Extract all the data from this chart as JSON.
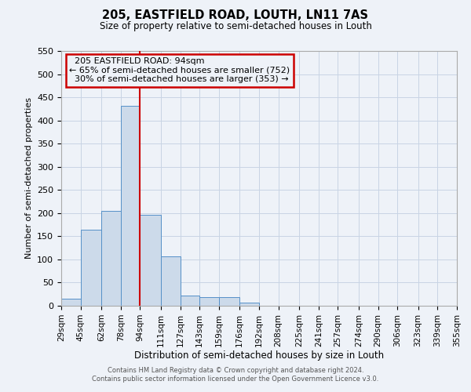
{
  "title": "205, EASTFIELD ROAD, LOUTH, LN11 7AS",
  "subtitle": "Size of property relative to semi-detached houses in Louth",
  "xlabel": "Distribution of semi-detached houses by size in Louth",
  "ylabel": "Number of semi-detached properties",
  "bin_labels": [
    "29sqm",
    "45sqm",
    "62sqm",
    "78sqm",
    "94sqm",
    "111sqm",
    "127sqm",
    "143sqm",
    "159sqm",
    "176sqm",
    "192sqm",
    "208sqm",
    "225sqm",
    "241sqm",
    "257sqm",
    "274sqm",
    "290sqm",
    "306sqm",
    "323sqm",
    "339sqm",
    "355sqm"
  ],
  "bin_edges": [
    29,
    45,
    62,
    78,
    94,
    111,
    127,
    143,
    159,
    176,
    192,
    208,
    225,
    241,
    257,
    274,
    290,
    306,
    323,
    339,
    355
  ],
  "bar_heights": [
    15,
    165,
    205,
    432,
    197,
    107,
    22,
    18,
    18,
    6,
    0,
    0,
    0,
    0,
    0,
    0,
    0,
    0,
    0,
    0
  ],
  "bar_color": "#ccdaea",
  "bar_edge_color": "#5590c8",
  "property_value": 94,
  "property_label": "205 EASTFIELD ROAD: 94sqm",
  "pct_smaller": 65,
  "pct_smaller_count": 752,
  "pct_larger": 30,
  "pct_larger_count": 353,
  "vline_color": "#cc0000",
  "annotation_box_edge_color": "#cc0000",
  "ylim": [
    0,
    550
  ],
  "yticks": [
    0,
    50,
    100,
    150,
    200,
    250,
    300,
    350,
    400,
    450,
    500,
    550
  ],
  "grid_color": "#c8d4e4",
  "background_color": "#eef2f8",
  "footer_line1": "Contains HM Land Registry data © Crown copyright and database right 2024.",
  "footer_line2": "Contains public sector information licensed under the Open Government Licence v3.0."
}
